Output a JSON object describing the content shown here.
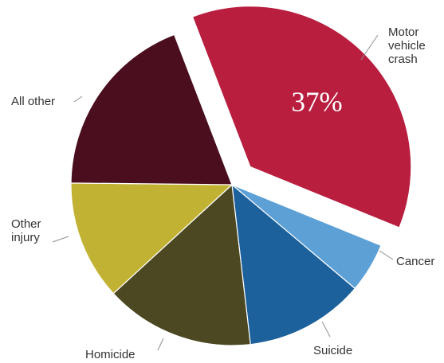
{
  "chart_data": {
    "type": "pie",
    "title": "",
    "slices": [
      {
        "label": "Motor vehicle crash",
        "label_lines": [
          "Motor",
          "vehicle",
          "crash"
        ],
        "value": 37,
        "data_label": "37%",
        "color": "#b91e3f",
        "exploded": true
      },
      {
        "label": "Cancer",
        "label_lines": [
          "Cancer"
        ],
        "value": 5,
        "data_label": "",
        "color": "#5ca0d6",
        "exploded": false
      },
      {
        "label": "Suicide",
        "label_lines": [
          "Suicide"
        ],
        "value": 12,
        "data_label": "",
        "color": "#1c609c",
        "exploded": false
      },
      {
        "label": "Homicide",
        "label_lines": [
          "Homicide"
        ],
        "value": 15,
        "data_label": "",
        "color": "#4b4822",
        "exploded": false
      },
      {
        "label": "Other injury",
        "label_lines": [
          "Other",
          "injury"
        ],
        "value": 12,
        "data_label": "",
        "color": "#c2b234",
        "exploded": false
      },
      {
        "label": "All other",
        "label_lines": [
          "All other"
        ],
        "value": 19,
        "data_label": "",
        "color": "#4a0e1e",
        "exploded": false
      }
    ]
  }
}
